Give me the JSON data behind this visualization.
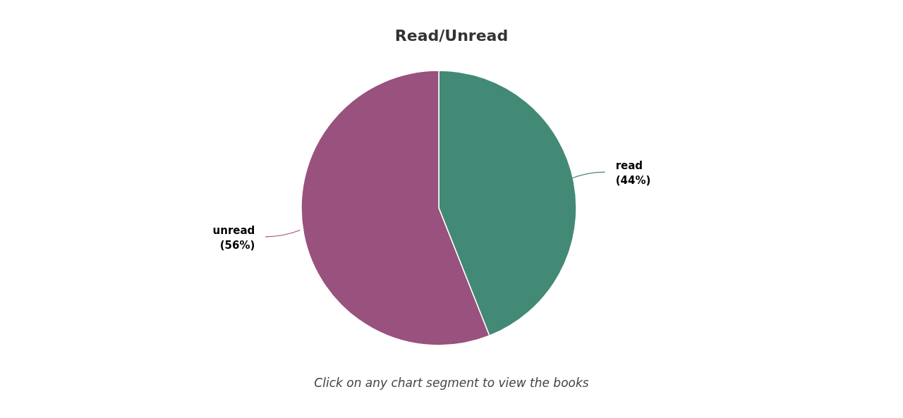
{
  "chart_data": {
    "type": "pie",
    "title": "Read/Unread",
    "categories": [
      "read",
      "unread"
    ],
    "values": [
      44,
      56
    ],
    "value_labels": [
      "(44%)",
      "(56%)"
    ],
    "colors": [
      "#428a76",
      "#99517e"
    ],
    "annotations": [
      "Click on any chart segment to view the books"
    ],
    "legend": false
  }
}
